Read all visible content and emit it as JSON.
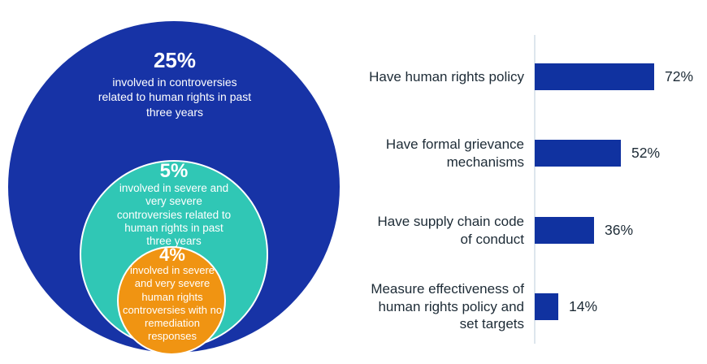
{
  "venn": {
    "text_color": "#FFFFFF",
    "circles": [
      {
        "name": "controversies-past-three-years",
        "pct": "25%",
        "label": "involved in controversies related to human rights in past three years",
        "label_lines": [
          "involved in controversies",
          "related to human rights in past",
          "three years"
        ],
        "color": "#1733A6"
      },
      {
        "name": "severe-and-very-severe-controversies",
        "pct": "5%",
        "label": "involved in severe and very severe controversies related to human rights in past three years",
        "label_lines": [
          "involved in severe and",
          "very severe",
          "controversies related to",
          "human rights in past",
          "three years"
        ],
        "color": "#30C7B5"
      },
      {
        "name": "no-remediation-responses",
        "pct": "4%",
        "label": "involved in severe and very severe human rights controversies with no remediation responses",
        "label_lines": [
          "involved in severe",
          "and very severe",
          "human rights",
          "controversies with no",
          "remediation",
          "responses"
        ],
        "color": "#F09412"
      }
    ]
  },
  "chart_data": {
    "type": "bar",
    "orientation": "horizontal",
    "categories": [
      "Have human rights policy",
      "Have formal grievance mechanisms",
      "Have supply chain code of conduct",
      "Measure effectiveness of human rights policy and set targets"
    ],
    "values": [
      72,
      52,
      36,
      14
    ],
    "value_labels": [
      "72%",
      "52%",
      "36%",
      "14%"
    ],
    "label_lines": [
      [
        "Have human rights policy"
      ],
      [
        "Have formal grievance",
        "mechanisms"
      ],
      [
        "Have supply chain code",
        "of conduct"
      ],
      [
        "Measure effectiveness of",
        "human rights policy and",
        "set targets"
      ]
    ],
    "xlim": [
      0,
      100
    ],
    "grid": false,
    "legend": false,
    "bar_color": "#1032A0",
    "axis_color": "#DDE6ED",
    "label_color": "#1D2B36"
  }
}
